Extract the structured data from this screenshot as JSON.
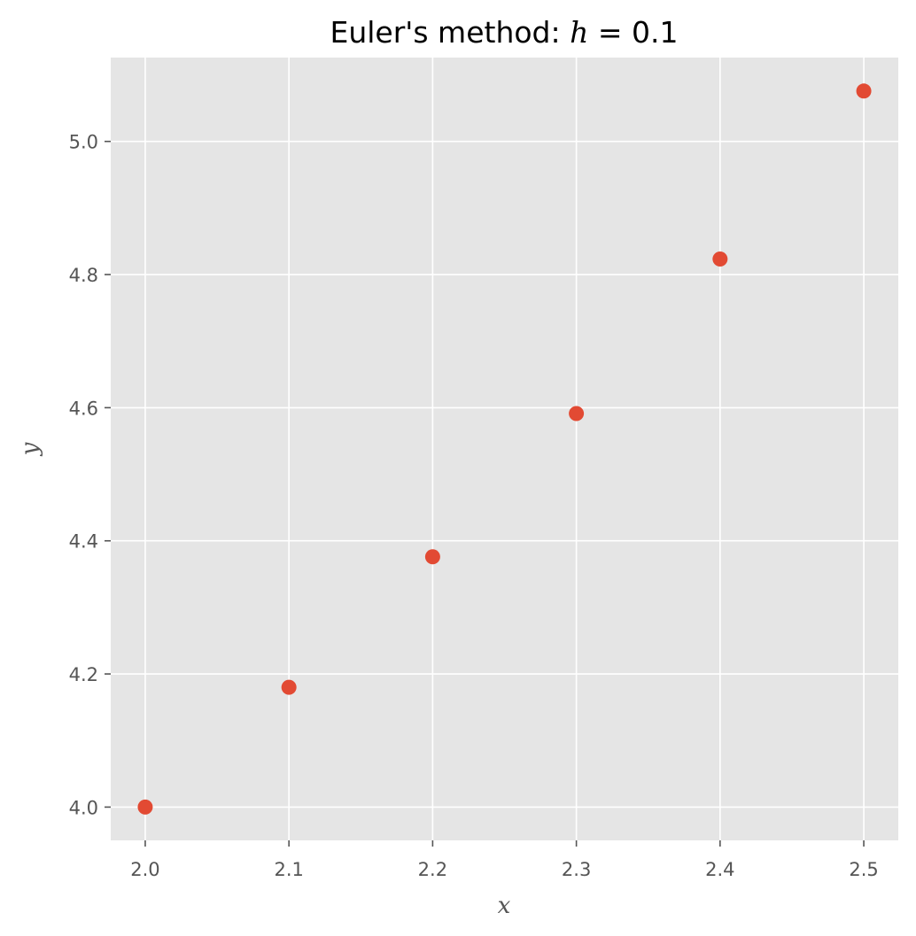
{
  "chart_data": {
    "type": "scatter",
    "title": {
      "prefix": "Euler's method: ",
      "math_var": "h",
      "math_rest": " = 0.1"
    },
    "xlabel": "x",
    "ylabel": "y",
    "xlim": [
      1.976,
      2.524
    ],
    "ylim": [
      3.95,
      5.126
    ],
    "xticks": [
      2.0,
      2.1,
      2.2,
      2.3,
      2.4,
      2.5
    ],
    "xtick_labels": [
      "2.0",
      "2.1",
      "2.2",
      "2.3",
      "2.4",
      "2.5"
    ],
    "yticks": [
      4.0,
      4.2,
      4.4,
      4.6,
      4.8,
      5.0
    ],
    "ytick_labels": [
      "4.0",
      "4.2",
      "4.4",
      "4.6",
      "4.8",
      "5.0"
    ],
    "grid": true,
    "colors": {
      "background": "#e5e5e5",
      "grid": "#ffffff",
      "marker": "#e24a33"
    },
    "points": [
      {
        "x": 2.0,
        "y": 4.0
      },
      {
        "x": 2.1,
        "y": 4.18
      },
      {
        "x": 2.2,
        "y": 4.376
      },
      {
        "x": 2.3,
        "y": 4.5912
      },
      {
        "x": 2.4,
        "y": 4.8234
      },
      {
        "x": 2.5,
        "y": 5.0757
      }
    ]
  }
}
